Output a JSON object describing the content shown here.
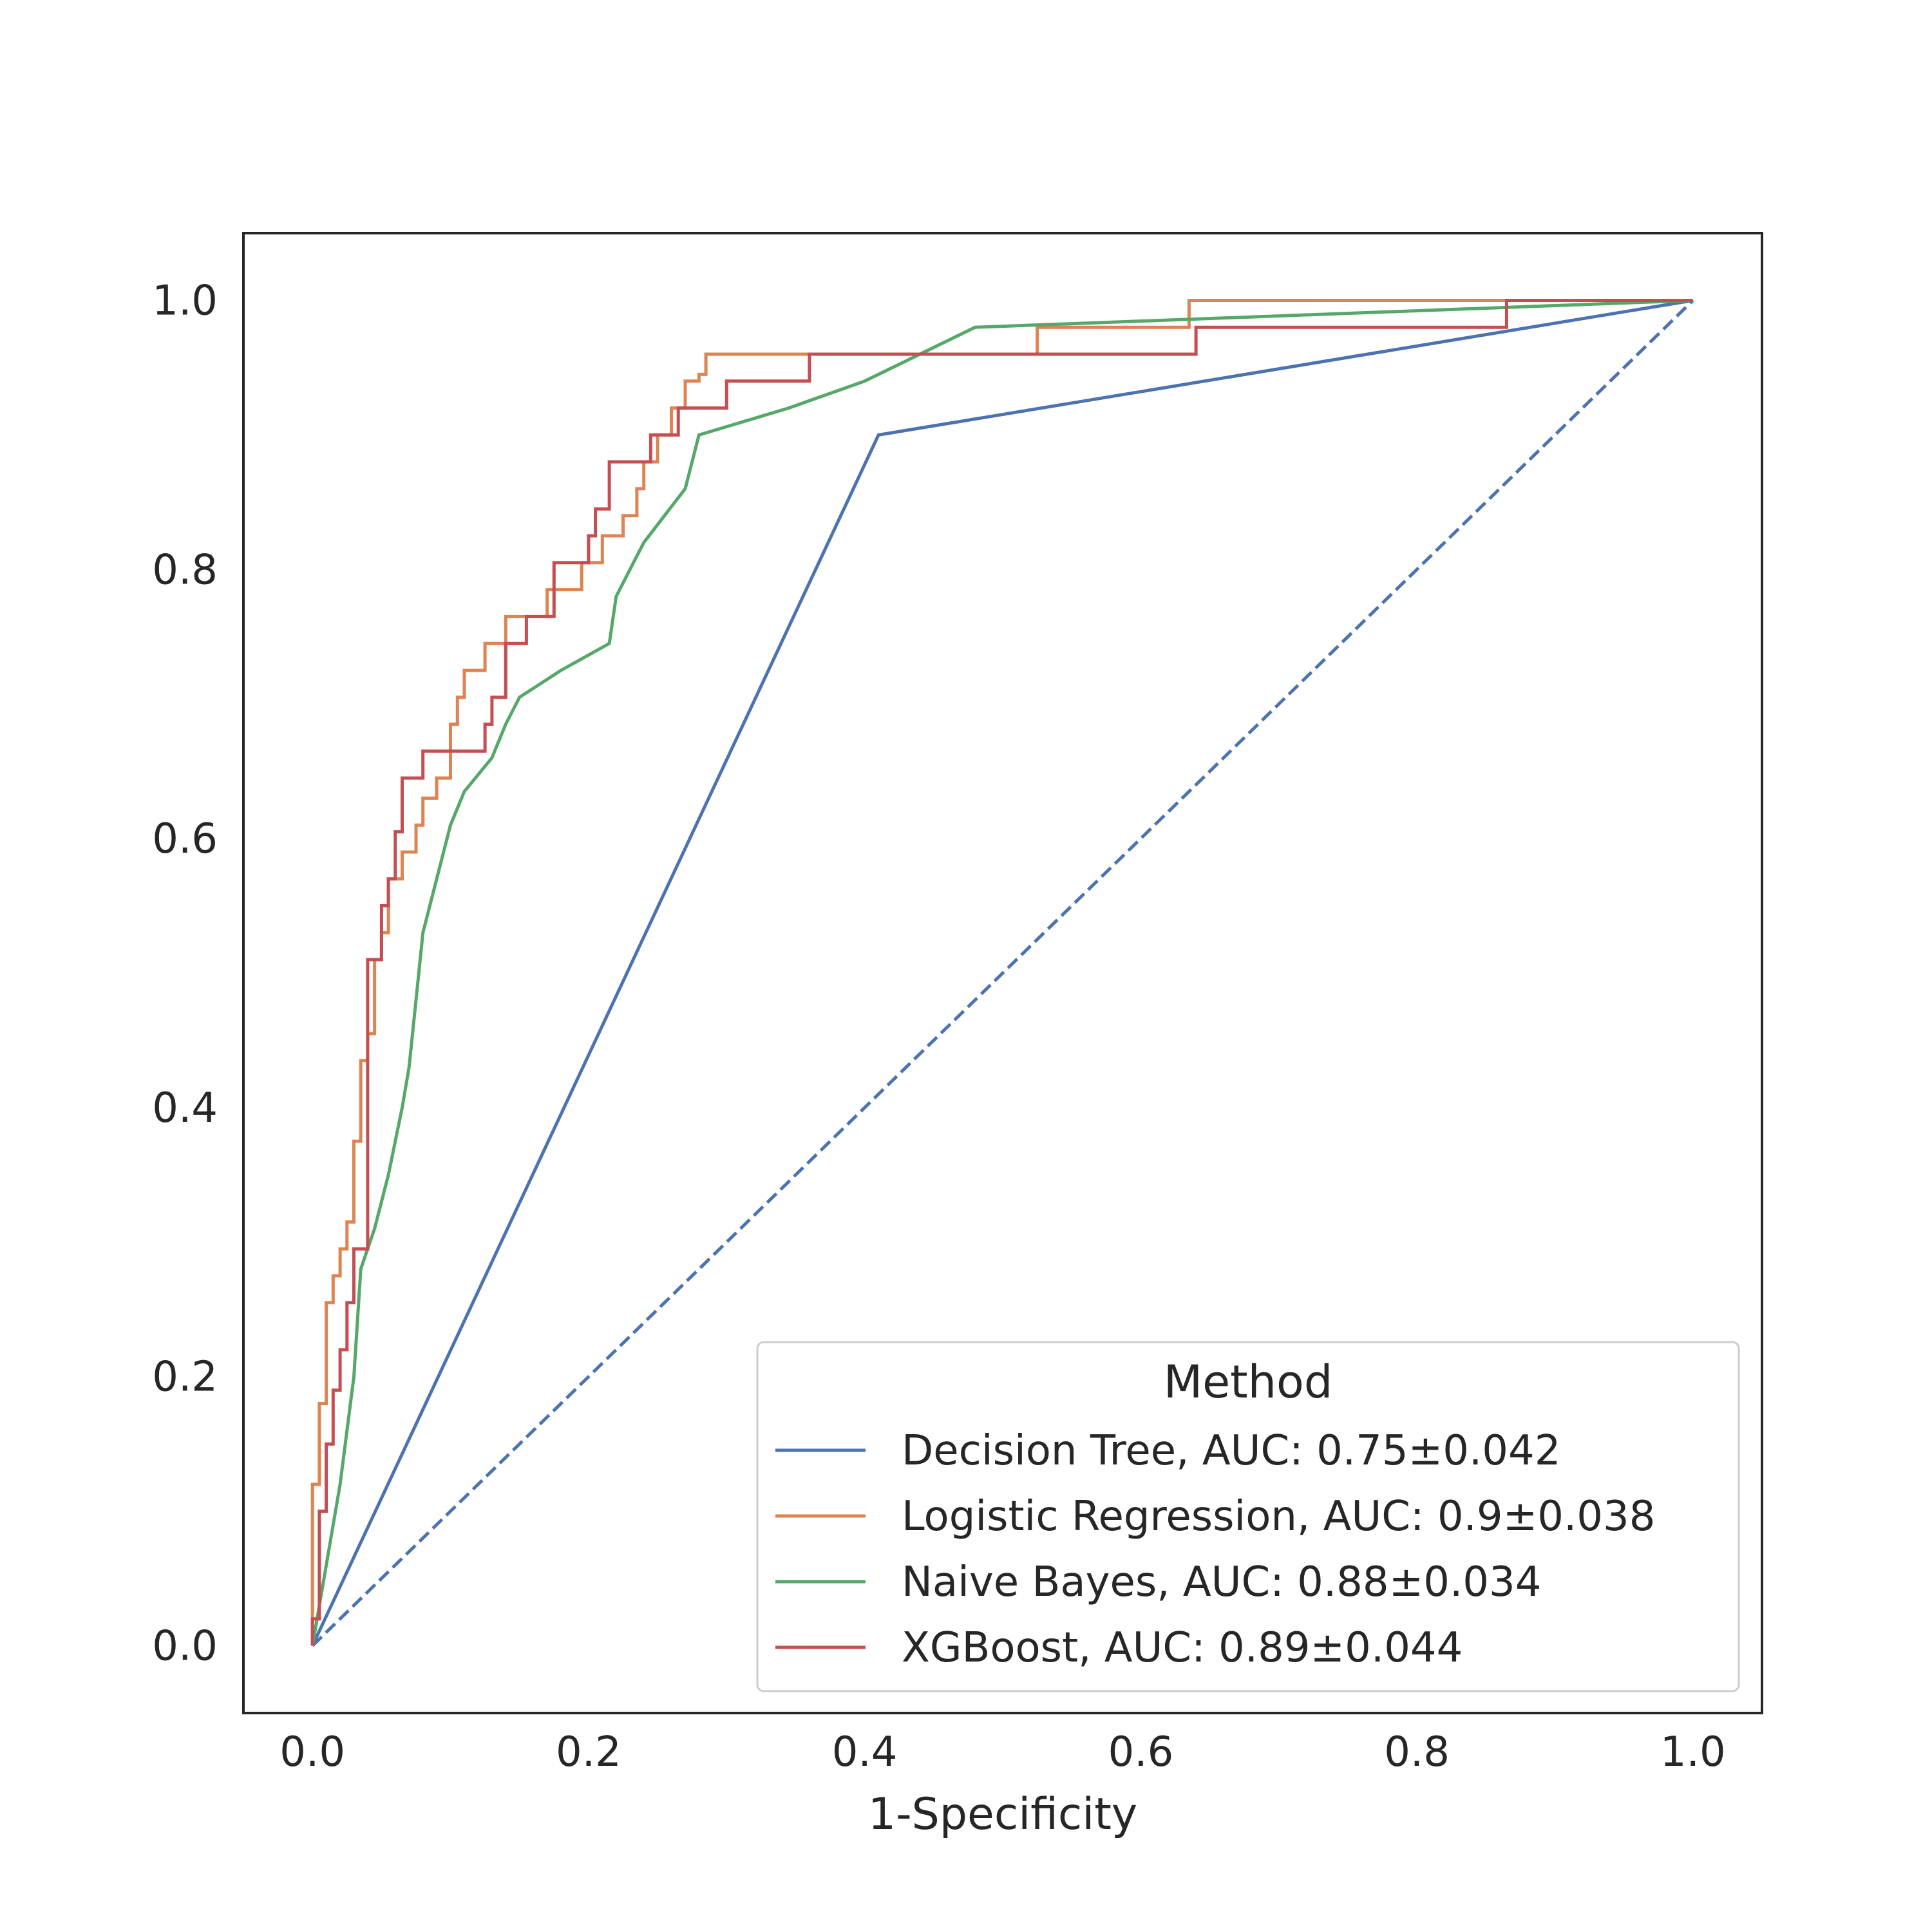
{
  "chart_data": {
    "type": "line",
    "title": "",
    "xlabel": "1-Specificity",
    "ylabel": "",
    "xlim": [
      -0.05,
      1.05
    ],
    "ylim": [
      -0.05,
      1.05
    ],
    "xticks": [
      0.0,
      0.2,
      0.4,
      0.6,
      0.8,
      1.0
    ],
    "yticks": [
      0.0,
      0.2,
      0.4,
      0.6,
      0.8,
      1.0
    ],
    "xtick_labels": [
      "0.0",
      "0.2",
      "0.4",
      "0.6",
      "0.8",
      "1.0"
    ],
    "ytick_labels": [
      "0.0",
      "0.2",
      "0.4",
      "0.6",
      "0.8",
      "1.0"
    ],
    "grid": false,
    "legend": {
      "title": "Method",
      "position": "lower-right"
    },
    "series": [
      {
        "name": "Decision Tree, AUC: 0.75±0.042",
        "color": "#4c72b0",
        "style": "solid",
        "x": [
          0.0,
          0.41,
          1.0
        ],
        "y": [
          0.0,
          0.9,
          1.0
        ]
      },
      {
        "name": "Logistic Regression, AUC: 0.9±0.038",
        "color": "#dd8452",
        "style": "solid",
        "x": [
          0.0,
          0.0,
          0.005,
          0.005,
          0.01,
          0.01,
          0.015,
          0.015,
          0.02,
          0.02,
          0.025,
          0.025,
          0.03,
          0.03,
          0.035,
          0.035,
          0.04,
          0.04,
          0.045,
          0.045,
          0.05,
          0.05,
          0.055,
          0.055,
          0.065,
          0.065,
          0.075,
          0.075,
          0.08,
          0.08,
          0.09,
          0.09,
          0.1,
          0.1,
          0.105,
          0.105,
          0.11,
          0.11,
          0.125,
          0.125,
          0.14,
          0.14,
          0.17,
          0.17,
          0.195,
          0.195,
          0.21,
          0.21,
          0.225,
          0.225,
          0.235,
          0.235,
          0.24,
          0.24,
          0.25,
          0.25,
          0.26,
          0.26,
          0.27,
          0.27,
          0.28,
          0.28,
          0.285,
          0.285,
          0.29,
          0.29,
          0.37,
          0.37,
          0.525,
          0.525,
          0.635,
          0.635,
          1.0
        ],
        "y": [
          0.0,
          0.12,
          0.12,
          0.18,
          0.18,
          0.255,
          0.255,
          0.275,
          0.275,
          0.295,
          0.295,
          0.315,
          0.315,
          0.375,
          0.375,
          0.435,
          0.435,
          0.455,
          0.455,
          0.51,
          0.51,
          0.53,
          0.53,
          0.57,
          0.57,
          0.59,
          0.59,
          0.61,
          0.61,
          0.63,
          0.63,
          0.645,
          0.645,
          0.685,
          0.685,
          0.705,
          0.705,
          0.725,
          0.725,
          0.745,
          0.745,
          0.765,
          0.765,
          0.785,
          0.785,
          0.805,
          0.805,
          0.825,
          0.825,
          0.84,
          0.84,
          0.86,
          0.86,
          0.88,
          0.88,
          0.9,
          0.9,
          0.92,
          0.92,
          0.94,
          0.94,
          0.945,
          0.945,
          0.96,
          0.96,
          0.96,
          0.96,
          0.96,
          0.96,
          0.98,
          0.98,
          1.0,
          1.0
        ]
      },
      {
        "name": "Naive Bayes, AUC: 0.88±0.034",
        "color": "#55a868",
        "style": "solid",
        "x": [
          0.0,
          0.02,
          0.02,
          0.025,
          0.025,
          0.03,
          0.03,
          0.035,
          0.035,
          0.045,
          0.045,
          0.055,
          0.055,
          0.06,
          0.06,
          0.065,
          0.065,
          0.07,
          0.07,
          0.075,
          0.075,
          0.08,
          0.08,
          0.09,
          0.09,
          0.1,
          0.1,
          0.11,
          0.11,
          0.13,
          0.13,
          0.14,
          0.14,
          0.15,
          0.15,
          0.18,
          0.18,
          0.215,
          0.215,
          0.22,
          0.22,
          0.23,
          0.23,
          0.24,
          0.24,
          0.255,
          0.255,
          0.27,
          0.27,
          0.275,
          0.275,
          0.28,
          0.28,
          0.345,
          0.345,
          0.4,
          0.4,
          0.48,
          0.48,
          1.0
        ],
        "y": [
          0.0,
          0.12,
          0.12,
          0.16,
          0.16,
          0.2,
          0.2,
          0.28,
          0.28,
          0.31,
          0.31,
          0.35,
          0.35,
          0.375,
          0.375,
          0.4,
          0.4,
          0.43,
          0.43,
          0.48,
          0.48,
          0.53,
          0.53,
          0.57,
          0.57,
          0.61,
          0.61,
          0.635,
          0.635,
          0.66,
          0.66,
          0.685,
          0.685,
          0.705,
          0.705,
          0.725,
          0.725,
          0.745,
          0.745,
          0.78,
          0.78,
          0.8,
          0.8,
          0.82,
          0.82,
          0.84,
          0.84,
          0.86,
          0.86,
          0.88,
          0.88,
          0.9,
          0.9,
          0.92,
          0.92,
          0.94,
          0.94,
          0.98,
          0.98,
          1.0
        ]
      },
      {
        "name": "XGBoost, AUC: 0.89±0.044",
        "color": "#c44e52",
        "style": "solid",
        "x": [
          0.0,
          0.0,
          0.005,
          0.005,
          0.01,
          0.01,
          0.015,
          0.015,
          0.02,
          0.02,
          0.025,
          0.025,
          0.03,
          0.03,
          0.035,
          0.035,
          0.04,
          0.04,
          0.045,
          0.045,
          0.05,
          0.05,
          0.055,
          0.055,
          0.06,
          0.06,
          0.065,
          0.065,
          0.08,
          0.08,
          0.125,
          0.125,
          0.13,
          0.13,
          0.14,
          0.14,
          0.155,
          0.155,
          0.175,
          0.175,
          0.2,
          0.2,
          0.205,
          0.205,
          0.215,
          0.215,
          0.245,
          0.245,
          0.265,
          0.265,
          0.3,
          0.3,
          0.36,
          0.36,
          0.64,
          0.64,
          0.865,
          0.865,
          1.0
        ],
        "y": [
          0.0,
          0.02,
          0.02,
          0.1,
          0.1,
          0.15,
          0.15,
          0.19,
          0.19,
          0.22,
          0.22,
          0.255,
          0.255,
          0.295,
          0.295,
          0.295,
          0.295,
          0.51,
          0.51,
          0.51,
          0.51,
          0.55,
          0.55,
          0.57,
          0.57,
          0.605,
          0.605,
          0.645,
          0.645,
          0.665,
          0.665,
          0.685,
          0.685,
          0.705,
          0.705,
          0.745,
          0.745,
          0.765,
          0.765,
          0.805,
          0.805,
          0.825,
          0.825,
          0.845,
          0.845,
          0.88,
          0.88,
          0.9,
          0.9,
          0.92,
          0.92,
          0.94,
          0.94,
          0.96,
          0.96,
          0.98,
          0.98,
          1.0,
          1.0
        ]
      }
    ],
    "reference_line": {
      "color": "#4c72b0",
      "style": "dashed",
      "x": [
        0.0,
        1.0
      ],
      "y": [
        0.0,
        1.0
      ]
    }
  }
}
